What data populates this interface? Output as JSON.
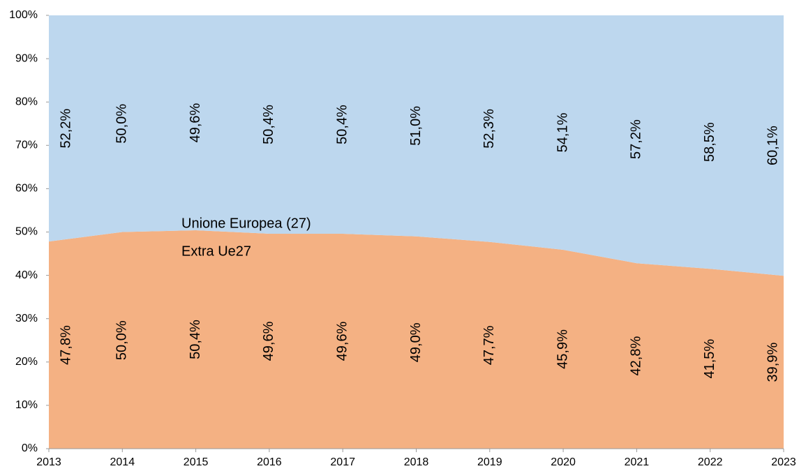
{
  "chart_data": {
    "type": "area",
    "stacked": true,
    "x": [
      2013,
      2014,
      2015,
      2016,
      2017,
      2018,
      2019,
      2020,
      2021,
      2022,
      2023
    ],
    "xlim": [
      2013,
      2023
    ],
    "xticks": [
      2013,
      2014,
      2015,
      2016,
      2017,
      2018,
      2019,
      2020,
      2021,
      2022,
      2023
    ],
    "ylim": [
      0,
      100
    ],
    "yticks": [
      {
        "value": 0,
        "label": "0%"
      },
      {
        "value": 10,
        "label": "10%"
      },
      {
        "value": 20,
        "label": "20%"
      },
      {
        "value": 30,
        "label": "30%"
      },
      {
        "value": 40,
        "label": "40%"
      },
      {
        "value": 50,
        "label": "50%"
      },
      {
        "value": 60,
        "label": "60%"
      },
      {
        "value": 70,
        "label": "70%"
      },
      {
        "value": 80,
        "label": "80%"
      },
      {
        "value": 90,
        "label": "90%"
      },
      {
        "value": 100,
        "label": "100%"
      }
    ],
    "series": [
      {
        "name": "Extra Ue27",
        "color": "#f4b183",
        "values": [
          47.8,
          50.0,
          50.4,
          49.6,
          49.6,
          49.0,
          47.7,
          45.9,
          42.8,
          41.5,
          39.9
        ],
        "value_labels": [
          "47,8%",
          "50,0%",
          "50,4%",
          "49,6%",
          "49,6%",
          "49,0%",
          "47,7%",
          "45,9%",
          "42,8%",
          "41,5%",
          "39,9%"
        ]
      },
      {
        "name": "Unione Europea (27)",
        "color": "#bdd7ee",
        "values": [
          52.2,
          50.0,
          49.6,
          50.4,
          50.4,
          51.0,
          52.3,
          54.1,
          57.2,
          58.5,
          60.1
        ],
        "value_labels": [
          "52,2%",
          "50,0%",
          "49,6%",
          "50,4%",
          "50,4%",
          "51,0%",
          "52,3%",
          "54,1%",
          "57,2%",
          "58,5%",
          "60,1%"
        ]
      }
    ]
  }
}
